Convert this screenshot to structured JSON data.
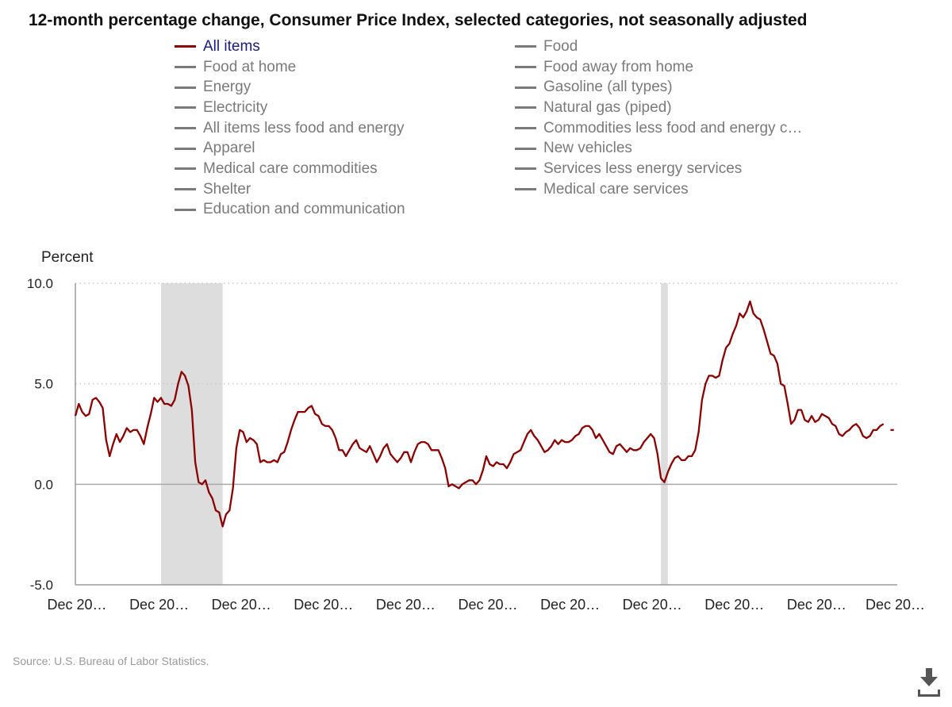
{
  "title": "12-month percentage change, Consumer Price Index, selected categories, not seasonally adjusted",
  "legend": {
    "col1": [
      "All items",
      "Food at home",
      "Energy",
      "Electricity",
      "All items less food and energy",
      "Apparel",
      "Medical care commodities",
      "Shelter",
      "Education and communication"
    ],
    "col2": [
      "Food",
      "Food away from home",
      "Gasoline (all types)",
      "Natural gas (piped)",
      "Commodities less food and energy c…",
      "New vehicles",
      "Services less energy services",
      "Medical care services"
    ]
  },
  "source": "Source: U.S. Bureau of Labor Statistics.",
  "icons": {
    "download": "download-icon"
  },
  "colors": {
    "series": "#8b0000",
    "legend_active_text": "#1a1a80",
    "legend_inactive": "#7a7a7a",
    "recession": "#dddddd",
    "grid": "#c8c8c8"
  },
  "chart_data": {
    "type": "line",
    "title": "12-month percentage change, Consumer Price Index, selected categories, not seasonally adjusted",
    "ylabel": "Percent",
    "xlabel": "",
    "ylim": [
      -5,
      10
    ],
    "yticks": [
      {
        "value": -5,
        "label": "-5.0"
      },
      {
        "value": 0,
        "label": "0.0"
      },
      {
        "value": 5,
        "label": "5.0"
      },
      {
        "value": 10,
        "label": "10.0"
      }
    ],
    "xlim": [
      0,
      240
    ],
    "xticks": [
      {
        "value": 0,
        "label": "Dec 20…"
      },
      {
        "value": 24,
        "label": "Dec 20…"
      },
      {
        "value": 48,
        "label": "Dec 20…"
      },
      {
        "value": 72,
        "label": "Dec 20…"
      },
      {
        "value": 96,
        "label": "Dec 20…"
      },
      {
        "value": 120,
        "label": "Dec 20…"
      },
      {
        "value": 144,
        "label": "Dec 20…"
      },
      {
        "value": 168,
        "label": "Dec 20…"
      },
      {
        "value": 192,
        "label": "Dec 20…"
      },
      {
        "value": 216,
        "label": "Dec 20…"
      },
      {
        "value": 240,
        "label": "Dec 20…"
      }
    ],
    "recessions": [
      [
        25,
        43
      ],
      [
        171,
        173
      ]
    ],
    "grid": true,
    "series": [
      {
        "name": "All items",
        "color": "#8b0000",
        "points": [
          [
            0,
            3.4
          ],
          [
            1,
            4.0
          ],
          [
            2,
            3.6
          ],
          [
            3,
            3.4
          ],
          [
            4,
            3.5
          ],
          [
            5,
            4.2
          ],
          [
            6,
            4.3
          ],
          [
            7,
            4.1
          ],
          [
            8,
            3.8
          ],
          [
            9,
            2.2
          ],
          [
            10,
            1.4
          ],
          [
            11,
            2.0
          ],
          [
            12,
            2.5
          ],
          [
            13,
            2.1
          ],
          [
            14,
            2.4
          ],
          [
            15,
            2.8
          ],
          [
            16,
            2.6
          ],
          [
            17,
            2.7
          ],
          [
            18,
            2.7
          ],
          [
            19,
            2.4
          ],
          [
            20,
            2.0
          ],
          [
            21,
            2.8
          ],
          [
            22,
            3.5
          ],
          [
            23,
            4.3
          ],
          [
            24,
            4.1
          ],
          [
            25,
            4.3
          ],
          [
            26,
            4.0
          ],
          [
            27,
            4.0
          ],
          [
            28,
            3.9
          ],
          [
            29,
            4.2
          ],
          [
            30,
            5.0
          ],
          [
            31,
            5.6
          ],
          [
            32,
            5.4
          ],
          [
            33,
            4.9
          ],
          [
            34,
            3.7
          ],
          [
            35,
            1.1
          ],
          [
            36,
            0.1
          ],
          [
            37,
            0.0
          ],
          [
            38,
            0.2
          ],
          [
            39,
            -0.4
          ],
          [
            40,
            -0.7
          ],
          [
            41,
            -1.3
          ],
          [
            42,
            -1.4
          ],
          [
            43,
            -2.1
          ],
          [
            44,
            -1.5
          ],
          [
            45,
            -1.3
          ],
          [
            46,
            -0.2
          ],
          [
            47,
            1.8
          ],
          [
            48,
            2.7
          ],
          [
            49,
            2.6
          ],
          [
            50,
            2.1
          ],
          [
            51,
            2.3
          ],
          [
            52,
            2.2
          ],
          [
            53,
            2.0
          ],
          [
            54,
            1.1
          ],
          [
            55,
            1.2
          ],
          [
            56,
            1.1
          ],
          [
            57,
            1.1
          ],
          [
            58,
            1.2
          ],
          [
            59,
            1.1
          ],
          [
            60,
            1.5
          ],
          [
            61,
            1.6
          ],
          [
            62,
            2.1
          ],
          [
            63,
            2.7
          ],
          [
            64,
            3.2
          ],
          [
            65,
            3.6
          ],
          [
            66,
            3.6
          ],
          [
            67,
            3.6
          ],
          [
            68,
            3.8
          ],
          [
            69,
            3.9
          ],
          [
            70,
            3.5
          ],
          [
            71,
            3.4
          ],
          [
            72,
            3.0
          ],
          [
            73,
            2.9
          ],
          [
            74,
            2.9
          ],
          [
            75,
            2.7
          ],
          [
            76,
            2.3
          ],
          [
            77,
            1.7
          ],
          [
            78,
            1.7
          ],
          [
            79,
            1.4
          ],
          [
            80,
            1.7
          ],
          [
            81,
            2.0
          ],
          [
            82,
            2.2
          ],
          [
            83,
            1.8
          ],
          [
            84,
            1.7
          ],
          [
            85,
            1.6
          ],
          [
            86,
            1.9
          ],
          [
            87,
            1.5
          ],
          [
            88,
            1.1
          ],
          [
            89,
            1.4
          ],
          [
            90,
            1.8
          ],
          [
            91,
            2.0
          ],
          [
            92,
            1.5
          ],
          [
            93,
            1.3
          ],
          [
            94,
            1.1
          ],
          [
            95,
            1.3
          ],
          [
            96,
            1.6
          ],
          [
            97,
            1.6
          ],
          [
            98,
            1.1
          ],
          [
            99,
            1.6
          ],
          [
            100,
            2.0
          ],
          [
            101,
            2.1
          ],
          [
            102,
            2.1
          ],
          [
            103,
            2.0
          ],
          [
            104,
            1.7
          ],
          [
            105,
            1.7
          ],
          [
            106,
            1.7
          ],
          [
            107,
            1.3
          ],
          [
            108,
            0.8
          ],
          [
            109,
            -0.1
          ],
          [
            110,
            0.0
          ],
          [
            111,
            -0.1
          ],
          [
            112,
            -0.2
          ],
          [
            113,
            0.0
          ],
          [
            114,
            0.1
          ],
          [
            115,
            0.2
          ],
          [
            116,
            0.2
          ],
          [
            117,
            0.0
          ],
          [
            118,
            0.2
          ],
          [
            119,
            0.7
          ],
          [
            120,
            1.4
          ],
          [
            121,
            1.0
          ],
          [
            122,
            0.9
          ],
          [
            123,
            1.1
          ],
          [
            124,
            1.0
          ],
          [
            125,
            1.0
          ],
          [
            126,
            0.8
          ],
          [
            127,
            1.1
          ],
          [
            128,
            1.5
          ],
          [
            129,
            1.6
          ],
          [
            130,
            1.7
          ],
          [
            131,
            2.1
          ],
          [
            132,
            2.5
          ],
          [
            133,
            2.7
          ],
          [
            134,
            2.4
          ],
          [
            135,
            2.2
          ],
          [
            136,
            1.9
          ],
          [
            137,
            1.6
          ],
          [
            138,
            1.7
          ],
          [
            139,
            1.9
          ],
          [
            140,
            2.2
          ],
          [
            141,
            2.0
          ],
          [
            142,
            2.2
          ],
          [
            143,
            2.1
          ],
          [
            144,
            2.1
          ],
          [
            145,
            2.2
          ],
          [
            146,
            2.4
          ],
          [
            147,
            2.5
          ],
          [
            148,
            2.8
          ],
          [
            149,
            2.9
          ],
          [
            150,
            2.9
          ],
          [
            151,
            2.7
          ],
          [
            152,
            2.3
          ],
          [
            153,
            2.5
          ],
          [
            154,
            2.2
          ],
          [
            155,
            1.9
          ],
          [
            156,
            1.6
          ],
          [
            157,
            1.5
          ],
          [
            158,
            1.9
          ],
          [
            159,
            2.0
          ],
          [
            160,
            1.8
          ],
          [
            161,
            1.6
          ],
          [
            162,
            1.8
          ],
          [
            163,
            1.7
          ],
          [
            164,
            1.7
          ],
          [
            165,
            1.8
          ],
          [
            166,
            2.1
          ],
          [
            167,
            2.3
          ],
          [
            168,
            2.5
          ],
          [
            169,
            2.3
          ],
          [
            170,
            1.5
          ],
          [
            171,
            0.3
          ],
          [
            172,
            0.1
          ],
          [
            173,
            0.6
          ],
          [
            174,
            1.0
          ],
          [
            175,
            1.3
          ],
          [
            176,
            1.4
          ],
          [
            177,
            1.2
          ],
          [
            178,
            1.2
          ],
          [
            179,
            1.4
          ],
          [
            180,
            1.4
          ],
          [
            181,
            1.7
          ],
          [
            182,
            2.6
          ],
          [
            183,
            4.2
          ],
          [
            184,
            5.0
          ],
          [
            185,
            5.4
          ],
          [
            186,
            5.4
          ],
          [
            187,
            5.3
          ],
          [
            188,
            5.4
          ],
          [
            189,
            6.2
          ],
          [
            190,
            6.8
          ],
          [
            191,
            7.0
          ],
          [
            192,
            7.5
          ],
          [
            193,
            7.9
          ],
          [
            194,
            8.5
          ],
          [
            195,
            8.3
          ],
          [
            196,
            8.6
          ],
          [
            197,
            9.1
          ],
          [
            198,
            8.5
          ],
          [
            199,
            8.3
          ],
          [
            200,
            8.2
          ],
          [
            201,
            7.7
          ],
          [
            202,
            7.1
          ],
          [
            203,
            6.5
          ],
          [
            204,
            6.4
          ],
          [
            205,
            6.0
          ],
          [
            206,
            5.0
          ],
          [
            207,
            4.9
          ],
          [
            208,
            4.0
          ],
          [
            209,
            3.0
          ],
          [
            210,
            3.2
          ],
          [
            211,
            3.7
          ],
          [
            212,
            3.7
          ],
          [
            213,
            3.2
          ],
          [
            214,
            3.1
          ],
          [
            215,
            3.4
          ],
          [
            216,
            3.1
          ],
          [
            217,
            3.2
          ],
          [
            218,
            3.5
          ],
          [
            219,
            3.4
          ],
          [
            220,
            3.3
          ],
          [
            221,
            3.0
          ],
          [
            222,
            2.9
          ],
          [
            223,
            2.5
          ],
          [
            224,
            2.4
          ],
          [
            225,
            2.6
          ],
          [
            226,
            2.7
          ],
          [
            227,
            2.9
          ],
          [
            228,
            3.0
          ],
          [
            229,
            2.8
          ],
          [
            230,
            2.4
          ],
          [
            231,
            2.3
          ],
          [
            232,
            2.4
          ],
          [
            233,
            2.7
          ],
          [
            234,
            2.7
          ],
          [
            235,
            2.9
          ],
          [
            236,
            3.0
          ]
        ],
        "projection": [
          [
            238,
            2.7
          ],
          [
            239,
            2.7
          ]
        ]
      }
    ]
  }
}
